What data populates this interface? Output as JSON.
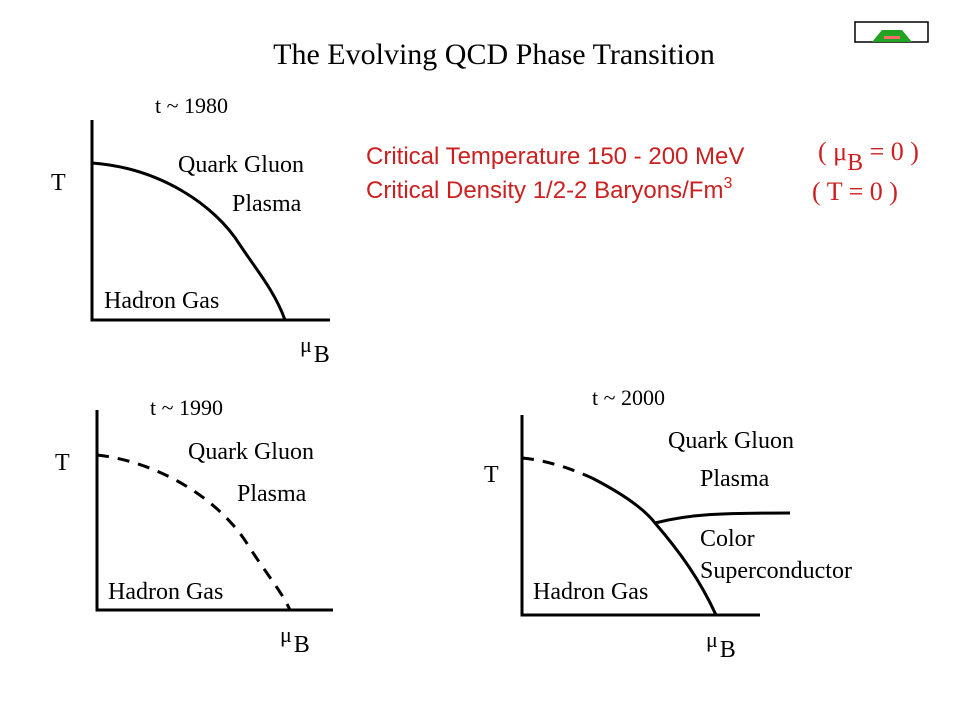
{
  "title": "The Evolving QCD Phase Transition",
  "badge": {
    "icon": "stop-sign-icon",
    "color": "#22a322",
    "label_color": "#d0f0d0"
  },
  "colors": {
    "highlight": "#cc1f1f"
  },
  "info": {
    "line1": {
      "text": "Critical Temperature 150 - 200 MeV",
      "cond_open": "( ",
      "cond_mu": "μ",
      "cond_sub": "B",
      "cond_rest": " = 0 )"
    },
    "line2": {
      "text": "Critical Density 1/2-2 Baryons/Fm",
      "sup": "3",
      "cond": "( T = 0 )"
    }
  },
  "diagrams": [
    {
      "year_label": "t ~ 1980",
      "t_axis": "T",
      "mu_label": "μ",
      "mu_sub": "B",
      "qgp_line1": "Quark Gluon",
      "qgp_line2": "Plasma",
      "hadron": "Hadron Gas"
    },
    {
      "year_label": "t ~ 1990",
      "t_axis": "T",
      "mu_label": "μ",
      "mu_sub": "B",
      "qgp_line1": "Quark Gluon",
      "qgp_line2": "Plasma",
      "hadron": "Hadron Gas"
    },
    {
      "year_label": "t ~ 2000",
      "t_axis": "T",
      "mu_label": "μ",
      "mu_sub": "B",
      "qgp_line1": "Quark Gluon",
      "qgp_line2": "Plasma",
      "csc_line1": "Color",
      "csc_line2": "Superconductor",
      "hadron": "Hadron Gas"
    }
  ]
}
